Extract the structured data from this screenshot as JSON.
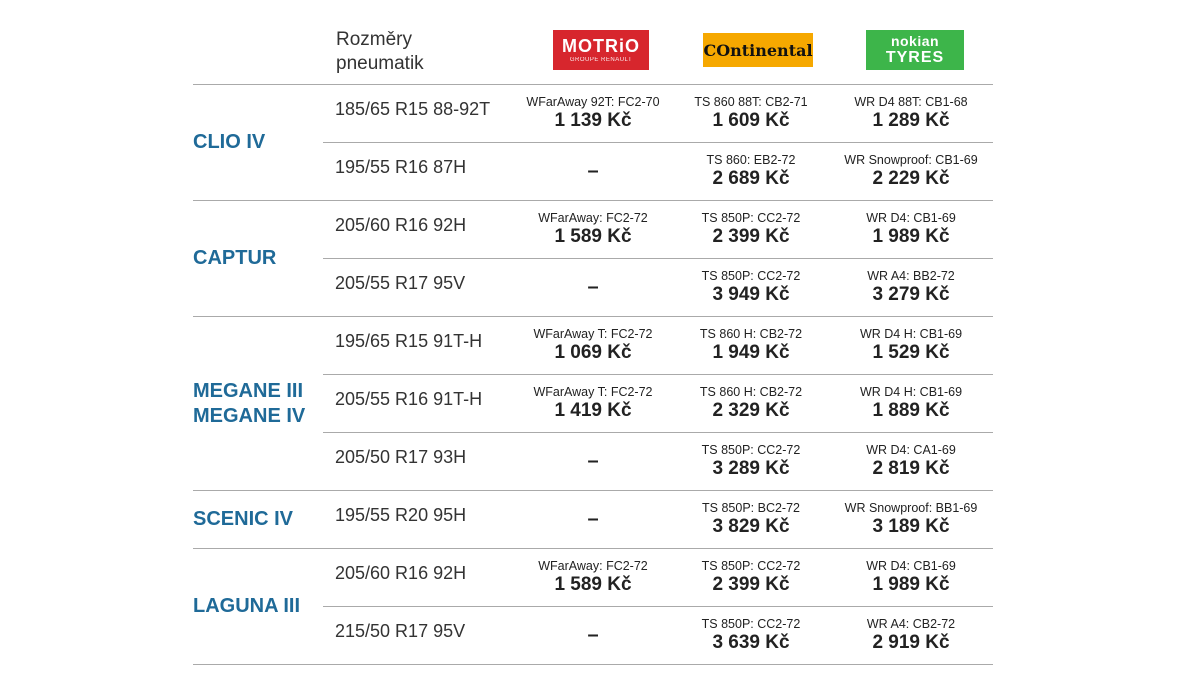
{
  "header": {
    "size_label_line1": "Rozměry",
    "size_label_line2": "pneumatik",
    "brands": {
      "motrio": {
        "name": "MOTRiO",
        "sub": "GROUPE RENAULT"
      },
      "continental": {
        "name": "Ontinental"
      },
      "nokian": {
        "line1": "nokian",
        "line2": "TYRES"
      }
    }
  },
  "colors": {
    "model_text": "#1f6a98",
    "motrio_bg": "#d7262d",
    "continental_bg": "#f6a800",
    "nokian_bg": "#3db54a"
  },
  "groups": [
    {
      "model": [
        "CLIO IV"
      ],
      "rows": [
        {
          "size": "185/65 R15 88-92T",
          "motrio": {
            "code": "WFarAway 92T: FC2-70",
            "price": "1 139 Kč"
          },
          "continental": {
            "code": "TS 860 88T: CB2-71",
            "price": "1 609 Kč"
          },
          "nokian": {
            "code": "WR D4 88T: CB1-68",
            "price": "1 289 Kč"
          }
        },
        {
          "size": "195/55 R16 87H",
          "motrio": {
            "dash": "–"
          },
          "continental": {
            "code": "TS 860: EB2-72",
            "price": "2 689 Kč"
          },
          "nokian": {
            "code": "WR Snowproof: CB1-69",
            "price": "2 229 Kč"
          }
        }
      ]
    },
    {
      "model": [
        "CAPTUR"
      ],
      "rows": [
        {
          "size": "205/60 R16 92H",
          "motrio": {
            "code": "WFarAway: FC2-72",
            "price": "1 589 Kč"
          },
          "continental": {
            "code": "TS 850P: CC2-72",
            "price": "2 399 Kč"
          },
          "nokian": {
            "code": "WR D4: CB1-69",
            "price": "1 989 Kč"
          }
        },
        {
          "size": "205/55 R17 95V",
          "motrio": {
            "dash": "–"
          },
          "continental": {
            "code": "TS 850P: CC2-72",
            "price": "3 949 Kč"
          },
          "nokian": {
            "code": "WR A4: BB2-72",
            "price": "3 279 Kč"
          }
        }
      ]
    },
    {
      "model": [
        "MEGANE III",
        "MEGANE IV"
      ],
      "rows": [
        {
          "size": "195/65 R15 91T-H",
          "motrio": {
            "code": "WFarAway T: FC2-72",
            "price": "1 069 Kč"
          },
          "continental": {
            "code": "TS 860 H: CB2-72",
            "price": "1 949 Kč"
          },
          "nokian": {
            "code": "WR D4 H: CB1-69",
            "price": "1 529 Kč"
          }
        },
        {
          "size": "205/55 R16 91T-H",
          "motrio": {
            "code": "WFarAway T: FC2-72",
            "price": "1 419 Kč"
          },
          "continental": {
            "code": "TS 860 H: CB2-72",
            "price": "2 329 Kč"
          },
          "nokian": {
            "code": "WR D4 H: CB1-69",
            "price": "1 889 Kč"
          }
        },
        {
          "size": "205/50 R17 93H",
          "motrio": {
            "dash": "–"
          },
          "continental": {
            "code": "TS 850P: CC2-72",
            "price": "3 289 Kč"
          },
          "nokian": {
            "code": "WR D4: CA1-69",
            "price": "2 819 Kč"
          }
        }
      ]
    },
    {
      "model": [
        "SCENIC IV"
      ],
      "rows": [
        {
          "size": "195/55 R20 95H",
          "motrio": {
            "dash": "–"
          },
          "continental": {
            "code": "TS 850P: BC2-72",
            "price": "3 829 Kč"
          },
          "nokian": {
            "code": "WR Snowproof: BB1-69",
            "price": "3 189 Kč"
          }
        }
      ]
    },
    {
      "model": [
        "LAGUNA III"
      ],
      "rows": [
        {
          "size": "205/60 R16 92H",
          "motrio": {
            "code": "WFarAway: FC2-72",
            "price": "1 589 Kč"
          },
          "continental": {
            "code": "TS 850P: CC2-72",
            "price": "2 399 Kč"
          },
          "nokian": {
            "code": "WR D4: CB1-69",
            "price": "1 989 Kč"
          }
        },
        {
          "size": "215/50 R17 95V",
          "motrio": {
            "dash": "–"
          },
          "continental": {
            "code": "TS 850P: CC2-72",
            "price": "3 639 Kč"
          },
          "nokian": {
            "code": "WR A4: CB2-72",
            "price": "2 919 Kč"
          }
        }
      ]
    }
  ]
}
